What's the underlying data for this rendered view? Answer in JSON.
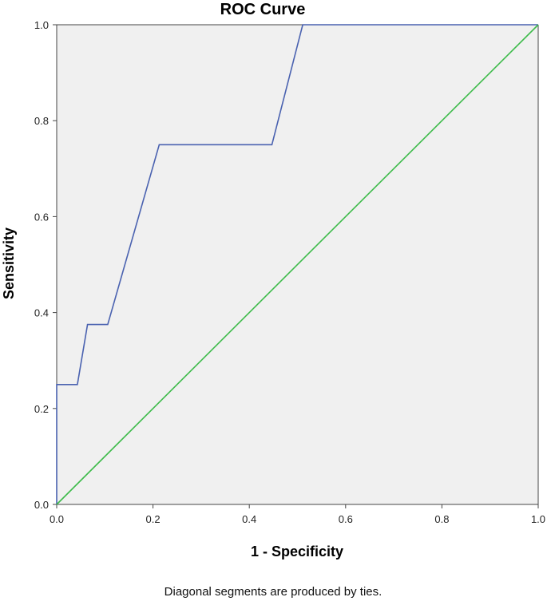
{
  "chart_data": {
    "type": "line",
    "title": "ROC Curve",
    "xlabel": "1 - Specificity",
    "ylabel": "Sensitivity",
    "xlim": [
      0,
      1
    ],
    "ylim": [
      0,
      1
    ],
    "x_ticks": [
      "0.0",
      "0.2",
      "0.4",
      "0.6",
      "0.8",
      "1.0"
    ],
    "y_ticks": [
      "0.0",
      "0.2",
      "0.4",
      "0.6",
      "0.8",
      "1.0"
    ],
    "grid": false,
    "series": [
      {
        "color": "#4a62b0",
        "x": [
          0.0,
          0.0,
          0.043,
          0.064,
          0.106,
          0.213,
          0.447,
          0.511,
          1.0
        ],
        "y": [
          0.0,
          0.25,
          0.25,
          0.375,
          0.375,
          0.75,
          0.75,
          1.0,
          1.0
        ]
      },
      {
        "color": "#3dbb4a",
        "x": [
          0.0,
          1.0
        ],
        "y": [
          0.0,
          1.0
        ]
      }
    ],
    "footnote": "Diagonal segments are produced by ties.",
    "plot_background": "#f0f0f0"
  }
}
